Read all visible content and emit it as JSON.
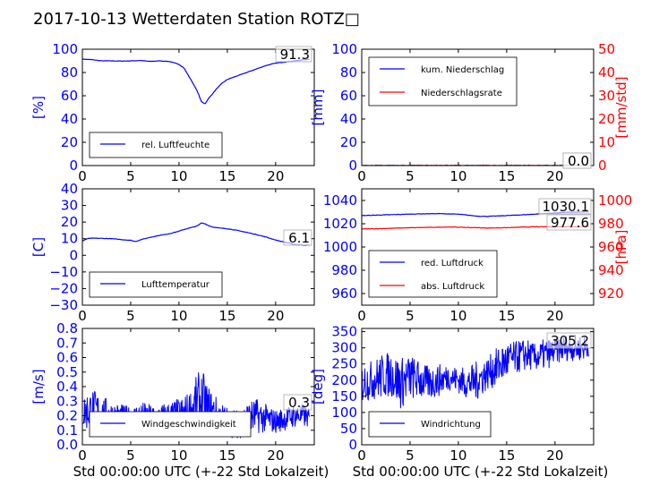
{
  "title": "2017-10-13 Wetterdaten Station ROTZ□",
  "chart_data": [
    {
      "id": "humidity",
      "type": "line",
      "xlabel": "",
      "ylabel": "[%]",
      "xlim": [
        0,
        24
      ],
      "ylim": [
        0,
        100
      ],
      "xticks": [
        "0",
        "5",
        "10",
        "15",
        "20"
      ],
      "yticks": [
        "0",
        "20",
        "40",
        "60",
        "80",
        "100"
      ],
      "legend": {
        "placement": "lower-center",
        "entries": [
          "rel. Luftfeuchte"
        ]
      },
      "annotations": [
        "91.3"
      ],
      "series": [
        {
          "name": "rel. Luftfeuchte",
          "color": "#0000ff",
          "x": [
            0,
            1,
            2,
            3,
            4,
            5,
            6,
            7,
            8,
            9,
            10,
            10.5,
            11,
            11.5,
            12,
            12.3,
            12.7,
            13,
            13.5,
            14,
            14.5,
            15,
            16,
            17,
            18,
            19,
            20,
            21,
            22,
            23,
            23.5
          ],
          "y": [
            91.5,
            91,
            90,
            90,
            89.8,
            90,
            90.3,
            89.5,
            90,
            89.5,
            87,
            84,
            77,
            70,
            62,
            55,
            53,
            57,
            62,
            67,
            71,
            74,
            77,
            80,
            83,
            86,
            88,
            89,
            90,
            91,
            91.3
          ]
        }
      ]
    },
    {
      "id": "precip",
      "type": "line",
      "xlabel": "",
      "ylabel": "[mm]",
      "ylabel2": "[mm/std]",
      "xlim": [
        0,
        24
      ],
      "ylim": [
        0,
        100
      ],
      "ylim2": [
        0,
        50
      ],
      "xticks": [
        "0",
        "5",
        "10",
        "15",
        "20"
      ],
      "yticks": [
        "0",
        "20",
        "40",
        "60",
        "80",
        "100"
      ],
      "yticks2": [
        "0",
        "10",
        "20",
        "30",
        "40",
        "50"
      ],
      "legend": {
        "placement": "upper-left",
        "entries": [
          "kum. Niederschlag",
          "Niederschlagsrate"
        ]
      },
      "annotations": [
        "0.0",
        "0.0"
      ],
      "series": [
        {
          "name": "kum. Niederschlag",
          "color": "#0000ff",
          "axis": "left",
          "x": [
            0,
            23.5
          ],
          "y": [
            0,
            0
          ]
        },
        {
          "name": "Niederschlagsrate",
          "color": "#ff0000",
          "axis": "right",
          "x": [
            0,
            23.5
          ],
          "y": [
            0,
            0
          ]
        }
      ]
    },
    {
      "id": "temperature",
      "type": "line",
      "xlabel": "",
      "ylabel": "[C]",
      "xlim": [
        0,
        24
      ],
      "ylim": [
        -30,
        40
      ],
      "xticks": [
        "0",
        "5",
        "10",
        "15",
        "20"
      ],
      "yticks": [
        "−30",
        "−20",
        "−10",
        "0",
        "10",
        "20",
        "30",
        "40"
      ],
      "legend": {
        "placement": "lower-center",
        "entries": [
          "Lufttemperatur"
        ]
      },
      "annotations": [
        "6.1"
      ],
      "series": [
        {
          "name": "Lufttemperatur",
          "color": "#0000ff",
          "x": [
            0,
            0.5,
            1,
            2,
            3,
            4,
            5,
            5.5,
            6,
            7,
            8,
            9,
            10,
            10.5,
            11,
            11.5,
            12,
            12.3,
            12.7,
            13,
            13.5,
            14,
            15,
            16,
            17,
            18,
            19,
            20,
            21,
            22,
            23,
            23.5
          ],
          "y": [
            8.5,
            10,
            10.3,
            10.2,
            10,
            9.5,
            9,
            8.3,
            9.3,
            10.8,
            12,
            13,
            14.5,
            15.5,
            16.3,
            17,
            18,
            19.5,
            19,
            18,
            17,
            16.5,
            16,
            15,
            13.8,
            12.5,
            11,
            9.2,
            7.8,
            6.5,
            6.1,
            6.1
          ]
        }
      ]
    },
    {
      "id": "pressure",
      "type": "line",
      "xlabel": "",
      "ylabel": "",
      "ylabel2": "[hPa]",
      "xlim": [
        0,
        24
      ],
      "ylim": [
        950,
        1050
      ],
      "ylim2": [
        910,
        1010
      ],
      "xticks": [
        "0",
        "5",
        "10",
        "15",
        "20"
      ],
      "yticks": [
        "960",
        "980",
        "1000",
        "1020",
        "1040"
      ],
      "yticks2": [
        "920",
        "940",
        "960",
        "980",
        "1000"
      ],
      "legend": {
        "placement": "lower-left",
        "entries": [
          "red. Luftdruck",
          "abs. Luftdruck"
        ]
      },
      "annotations": [
        "1030.1",
        "977.6"
      ],
      "series": [
        {
          "name": "red. Luftdruck",
          "color": "#0000ff",
          "axis": "left",
          "x": [
            0,
            2,
            4,
            6,
            8,
            10,
            12,
            13,
            15,
            17,
            19,
            21,
            23,
            23.5
          ],
          "y": [
            1027,
            1027.5,
            1028,
            1028.5,
            1028.7,
            1028.2,
            1026.5,
            1026.3,
            1027,
            1027.8,
            1028.8,
            1029.8,
            1030.1,
            1030.1
          ]
        },
        {
          "name": "abs. Luftdruck",
          "color": "#ff0000",
          "axis": "right",
          "x": [
            0,
            2,
            4,
            6,
            8,
            9,
            11,
            13,
            15,
            17,
            19,
            21,
            23,
            23.5
          ],
          "y": [
            975.5,
            975.8,
            976.3,
            976.7,
            977,
            977.2,
            976.8,
            976.3,
            976.6,
            977.2,
            977.4,
            977.5,
            977.6,
            977.6
          ]
        }
      ]
    },
    {
      "id": "wind-speed",
      "type": "line",
      "xlabel": "Std 00:00:00 UTC (+-22 Std Lokalzeit)",
      "ylabel": "[m/s]",
      "xlim": [
        0,
        24
      ],
      "ylim": [
        0,
        0.8
      ],
      "xticks": [
        "0",
        "5",
        "10",
        "15",
        "20"
      ],
      "yticks": [
        "0.0",
        "0.1",
        "0.2",
        "0.3",
        "0.4",
        "0.5",
        "0.6",
        "0.7",
        "0.8"
      ],
      "legend": {
        "placement": "lower-center",
        "entries": [
          "Windgeschwindigkeit"
        ]
      },
      "annotations": [
        "0.3"
      ],
      "series": [
        {
          "name": "Windgeschwindigkeit",
          "color": "#0000ff",
          "noisy": true,
          "x": [
            0,
            1,
            2,
            3,
            4,
            5,
            6,
            7,
            8,
            9,
            10,
            11,
            12,
            12.5,
            13,
            14,
            15,
            16,
            17,
            18,
            19,
            20,
            21,
            22,
            23,
            23.5
          ],
          "y": [
            0.22,
            0.24,
            0.22,
            0.2,
            0.2,
            0.18,
            0.2,
            0.18,
            0.18,
            0.2,
            0.2,
            0.22,
            0.3,
            0.28,
            0.25,
            0.2,
            0.16,
            0.14,
            0.18,
            0.2,
            0.18,
            0.16,
            0.18,
            0.2,
            0.2,
            0.18
          ],
          "amp": [
            0.12,
            0.15,
            0.12,
            0.1,
            0.08,
            0.08,
            0.1,
            0.1,
            0.1,
            0.1,
            0.12,
            0.14,
            0.2,
            0.22,
            0.16,
            0.12,
            0.1,
            0.1,
            0.12,
            0.12,
            0.1,
            0.08,
            0.08,
            0.08,
            0.08,
            0.06
          ]
        }
      ]
    },
    {
      "id": "wind-direction",
      "type": "line",
      "xlabel": "Std 00:00:00 UTC (+-22 Std Lokalzeit)",
      "ylabel": "[deg]",
      "xlim": [
        0,
        24
      ],
      "ylim": [
        0,
        360
      ],
      "xticks": [
        "0",
        "5",
        "10",
        "15",
        "20"
      ],
      "yticks": [
        "0",
        "50",
        "100",
        "150",
        "200",
        "250",
        "300",
        "350"
      ],
      "legend": {
        "placement": "lower-left",
        "entries": [
          "Windrichtung"
        ]
      },
      "annotations": [
        "305.2"
      ],
      "series": [
        {
          "name": "Windrichtung",
          "color": "#0000ff",
          "noisy": true,
          "x": [
            0,
            1,
            2,
            3,
            4,
            5,
            6,
            7,
            8,
            9,
            10,
            11,
            12,
            13,
            14,
            15,
            16,
            17,
            18,
            19,
            20,
            21,
            22,
            23,
            23.5
          ],
          "y": [
            190,
            200,
            210,
            220,
            190,
            210,
            200,
            190,
            200,
            210,
            200,
            190,
            200,
            220,
            240,
            260,
            270,
            280,
            270,
            280,
            290,
            300,
            300,
            300,
            305
          ],
          "amp": [
            60,
            60,
            70,
            70,
            80,
            70,
            60,
            50,
            50,
            40,
            40,
            50,
            60,
            50,
            60,
            60,
            50,
            50,
            40,
            50,
            40,
            40,
            40,
            40,
            30
          ]
        }
      ]
    }
  ]
}
